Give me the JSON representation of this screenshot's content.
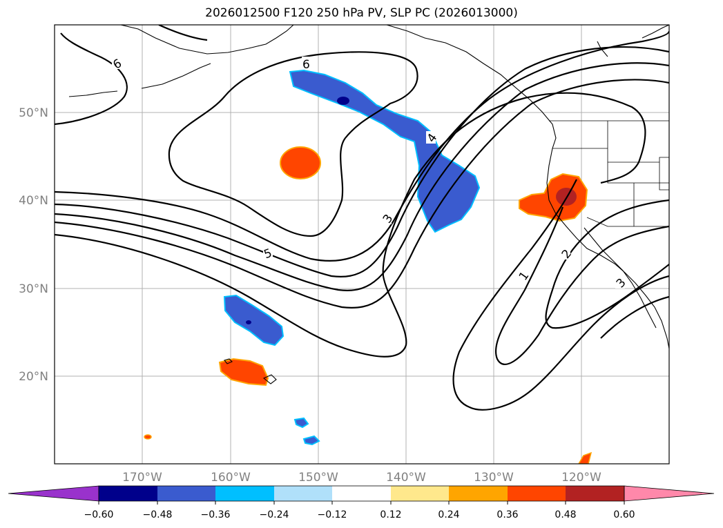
{
  "title": "2026012500 F120 250 hPa PV, SLP PC (2026013000)",
  "lat_labels": [
    "50°N",
    "40°N",
    "30°N",
    "20°N"
  ],
  "lon_labels": [
    "170°W",
    "160°W",
    "150°W",
    "140°W",
    "130°W",
    "120°W"
  ],
  "contour_labels": [
    "6",
    "6",
    "5",
    "4",
    "3",
    "1",
    "2",
    "3"
  ],
  "colorbar": {
    "ticks": [
      "−0.60",
      "−0.48",
      "−0.36",
      "−0.24",
      "−0.12",
      "0.12",
      "0.24",
      "0.36",
      "0.48",
      "0.60"
    ],
    "colors": [
      "#9932cc",
      "#00008b",
      "#3a5bcf",
      "#00bfff",
      "#b0e0fa",
      "#ffffff",
      "#ffe88c",
      "#ffa500",
      "#ff4500",
      "#b22222",
      "#ff88aa"
    ]
  },
  "colors": {
    "strong_negative": "#00008b",
    "negative": "#3a5bcf",
    "negative_edge": "#00bfff",
    "positive": "#ff4500",
    "positive_edge": "#ffa500",
    "strong_positive": "#b22222"
  }
}
